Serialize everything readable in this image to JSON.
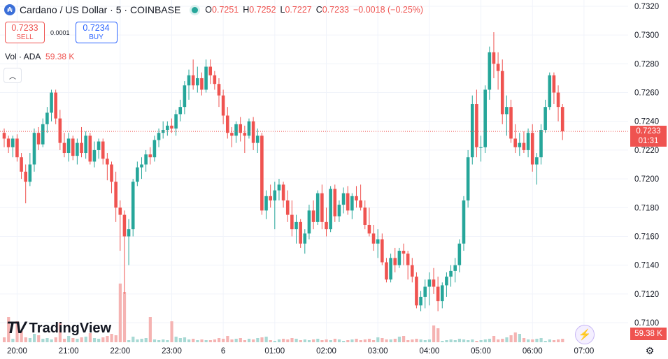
{
  "header": {
    "symbol_icon": "cardano-icon",
    "title": "Cardano / US Dollar · 5 · COINBASE",
    "ohlc": [
      {
        "k": "O",
        "v": "0.7251"
      },
      {
        "k": "H",
        "v": "0.7252"
      },
      {
        "k": "L",
        "v": "0.7227"
      },
      {
        "k": "C",
        "v": "0.7233"
      },
      {
        "k": "",
        "v": "−0.0018 (−0.25%)"
      }
    ]
  },
  "trade": {
    "sell_price": "0.7233",
    "sell_label": "SELL",
    "spread": "0.0001",
    "buy_price": "0.7234",
    "buy_label": "BUY"
  },
  "volume_legend": {
    "label": "Vol · ADA",
    "value": "59.38 K"
  },
  "branding": {
    "logo_text": "TradingView"
  },
  "last_price_tag": {
    "price": "0.7233",
    "countdown": "01:31"
  },
  "volume_tag": "59.38 K",
  "colors": {
    "up": "#26a69a",
    "down": "#ef5350",
    "up_vol": "#a8d9d4",
    "down_vol": "#f5b3b2"
  },
  "chart_data": {
    "type": "candlestick",
    "title": "Cardano / US Dollar · 5 · COINBASE",
    "ylim": [
      0.7094,
      0.7322
    ],
    "y_ticks": [
      "0.7320",
      "0.7300",
      "0.7280",
      "0.7260",
      "0.7240",
      "0.7220",
      "0.7200",
      "0.7180",
      "0.7160",
      "0.7140",
      "0.7120",
      "0.7100"
    ],
    "x_ticks": [
      {
        "label": "20:00",
        "index": 3
      },
      {
        "label": "21:00",
        "index": 15
      },
      {
        "label": "22:00",
        "index": 27
      },
      {
        "label": "23:00",
        "index": 39
      },
      {
        "label": "6",
        "index": 51
      },
      {
        "label": "01:00",
        "index": 63
      },
      {
        "label": "02:00",
        "index": 75
      },
      {
        "label": "03:00",
        "index": 87
      },
      {
        "label": "04:00",
        "index": 99
      },
      {
        "label": "05:00",
        "index": 111
      },
      {
        "label": "06:00",
        "index": 123
      },
      {
        "label": "07:00",
        "index": 135
      }
    ],
    "candles": [
      [
        0.7232,
        0.7235,
        0.7222,
        0.7228
      ],
      [
        0.7228,
        0.723,
        0.7218,
        0.7222
      ],
      [
        0.7222,
        0.723,
        0.7215,
        0.7228
      ],
      [
        0.7228,
        0.7231,
        0.7212,
        0.7215
      ],
      [
        0.7215,
        0.7218,
        0.72,
        0.7205
      ],
      [
        0.7205,
        0.721,
        0.7183,
        0.7198
      ],
      [
        0.7198,
        0.7218,
        0.7195,
        0.721
      ],
      [
        0.721,
        0.7235,
        0.7205,
        0.7232
      ],
      [
        0.7232,
        0.7236,
        0.722,
        0.7224
      ],
      [
        0.7224,
        0.7242,
        0.7222,
        0.7238
      ],
      [
        0.7238,
        0.725,
        0.7232,
        0.7246
      ],
      [
        0.7246,
        0.7262,
        0.724,
        0.726
      ],
      [
        0.726,
        0.7262,
        0.7238,
        0.7242
      ],
      [
        0.7242,
        0.7248,
        0.722,
        0.7225
      ],
      [
        0.7225,
        0.7232,
        0.7215,
        0.7218
      ],
      [
        0.7218,
        0.7232,
        0.7212,
        0.7228
      ],
      [
        0.7228,
        0.723,
        0.7213,
        0.7216
      ],
      [
        0.7216,
        0.7228,
        0.721,
        0.7225
      ],
      [
        0.7225,
        0.7236,
        0.7215,
        0.7218
      ],
      [
        0.7218,
        0.7233,
        0.7214,
        0.723
      ],
      [
        0.723,
        0.7232,
        0.721,
        0.7212
      ],
      [
        0.7212,
        0.7226,
        0.7208,
        0.722
      ],
      [
        0.722,
        0.7228,
        0.7214,
        0.7226
      ],
      [
        0.7226,
        0.7228,
        0.721,
        0.7214
      ],
      [
        0.7214,
        0.7218,
        0.7199,
        0.721
      ],
      [
        0.721,
        0.7212,
        0.719,
        0.7198
      ],
      [
        0.7198,
        0.7205,
        0.717,
        0.718
      ],
      [
        0.718,
        0.7185,
        0.715,
        0.7175
      ],
      [
        0.7175,
        0.7178,
        0.712,
        0.716
      ],
      [
        0.716,
        0.7172,
        0.714,
        0.7165
      ],
      [
        0.7165,
        0.72,
        0.716,
        0.7198
      ],
      [
        0.7198,
        0.7212,
        0.7195,
        0.7208
      ],
      [
        0.7208,
        0.7215,
        0.72,
        0.721
      ],
      [
        0.721,
        0.722,
        0.7205,
        0.7217
      ],
      [
        0.7217,
        0.7222,
        0.721,
        0.7215
      ],
      [
        0.7215,
        0.723,
        0.7212,
        0.7227
      ],
      [
        0.7227,
        0.7235,
        0.7222,
        0.7232
      ],
      [
        0.7232,
        0.724,
        0.7228,
        0.7234
      ],
      [
        0.7234,
        0.724,
        0.723,
        0.7237
      ],
      [
        0.7237,
        0.7242,
        0.7232,
        0.7235
      ],
      [
        0.7235,
        0.7248,
        0.723,
        0.7245
      ],
      [
        0.7245,
        0.7255,
        0.724,
        0.725
      ],
      [
        0.725,
        0.7268,
        0.7245,
        0.7265
      ],
      [
        0.7265,
        0.7276,
        0.7255,
        0.7272
      ],
      [
        0.7272,
        0.7283,
        0.7262,
        0.7265
      ],
      [
        0.7265,
        0.7278,
        0.726,
        0.727
      ],
      [
        0.727,
        0.7274,
        0.7258,
        0.7262
      ],
      [
        0.7262,
        0.7283,
        0.726,
        0.7278
      ],
      [
        0.7278,
        0.7283,
        0.7266,
        0.7272
      ],
      [
        0.7272,
        0.7275,
        0.7262,
        0.7266
      ],
      [
        0.7266,
        0.727,
        0.725,
        0.7258
      ],
      [
        0.7258,
        0.7262,
        0.7238,
        0.7244
      ],
      [
        0.7244,
        0.725,
        0.7228,
        0.7232
      ],
      [
        0.7232,
        0.7236,
        0.7222,
        0.723
      ],
      [
        0.723,
        0.724,
        0.7225,
        0.7238
      ],
      [
        0.7238,
        0.7243,
        0.7226,
        0.7232
      ],
      [
        0.7232,
        0.7237,
        0.7218,
        0.723
      ],
      [
        0.723,
        0.7242,
        0.7228,
        0.724
      ],
      [
        0.724,
        0.7243,
        0.722,
        0.7225
      ],
      [
        0.7225,
        0.7235,
        0.7218,
        0.723
      ],
      [
        0.723,
        0.7232,
        0.7175,
        0.7178
      ],
      [
        0.7178,
        0.7192,
        0.7172,
        0.7188
      ],
      [
        0.7188,
        0.7196,
        0.718,
        0.7185
      ],
      [
        0.7185,
        0.7198,
        0.7165,
        0.7192
      ],
      [
        0.7192,
        0.72,
        0.7185,
        0.7196
      ],
      [
        0.7196,
        0.7198,
        0.718,
        0.7185
      ],
      [
        0.7185,
        0.7192,
        0.717,
        0.7175
      ],
      [
        0.7175,
        0.7185,
        0.716,
        0.7165
      ],
      [
        0.7165,
        0.7175,
        0.7155,
        0.717
      ],
      [
        0.717,
        0.7172,
        0.7152,
        0.7155
      ],
      [
        0.7155,
        0.7165,
        0.7148,
        0.7162
      ],
      [
        0.7162,
        0.7182,
        0.7158,
        0.7178
      ],
      [
        0.7178,
        0.7185,
        0.7165,
        0.717
      ],
      [
        0.717,
        0.7192,
        0.7168,
        0.719
      ],
      [
        0.719,
        0.7196,
        0.7165,
        0.717
      ],
      [
        0.717,
        0.718,
        0.716,
        0.7165
      ],
      [
        0.7165,
        0.7195,
        0.7163,
        0.7193
      ],
      [
        0.7193,
        0.7196,
        0.717,
        0.7174
      ],
      [
        0.7174,
        0.7185,
        0.717,
        0.7182
      ],
      [
        0.7182,
        0.7194,
        0.7176,
        0.719
      ],
      [
        0.719,
        0.7195,
        0.7175,
        0.7178
      ],
      [
        0.7178,
        0.719,
        0.7172,
        0.7188
      ],
      [
        0.7188,
        0.7195,
        0.718,
        0.7185
      ],
      [
        0.7185,
        0.7196,
        0.7178,
        0.718
      ],
      [
        0.718,
        0.7185,
        0.7165,
        0.7168
      ],
      [
        0.7168,
        0.718,
        0.716,
        0.7162
      ],
      [
        0.7162,
        0.7168,
        0.715,
        0.7155
      ],
      [
        0.7155,
        0.7165,
        0.7145,
        0.7158
      ],
      [
        0.7158,
        0.7162,
        0.714,
        0.7142
      ],
      [
        0.7142,
        0.7145,
        0.7128,
        0.713
      ],
      [
        0.713,
        0.7148,
        0.7128,
        0.7145
      ],
      [
        0.7145,
        0.7152,
        0.7135,
        0.714
      ],
      [
        0.714,
        0.7152,
        0.7138,
        0.715
      ],
      [
        0.715,
        0.7155,
        0.714,
        0.7148
      ],
      [
        0.7148,
        0.715,
        0.713,
        0.714
      ],
      [
        0.714,
        0.7145,
        0.7128,
        0.7132
      ],
      [
        0.7132,
        0.7135,
        0.711,
        0.7112
      ],
      [
        0.7112,
        0.7122,
        0.7108,
        0.7118
      ],
      [
        0.7118,
        0.713,
        0.711,
        0.7125
      ],
      [
        0.7125,
        0.7135,
        0.7112,
        0.713
      ],
      [
        0.713,
        0.7138,
        0.712,
        0.7125
      ],
      [
        0.7125,
        0.7132,
        0.7108,
        0.7115
      ],
      [
        0.7115,
        0.7128,
        0.711,
        0.7126
      ],
      [
        0.7126,
        0.7135,
        0.7118,
        0.7132
      ],
      [
        0.7132,
        0.714,
        0.7125,
        0.7136
      ],
      [
        0.7136,
        0.7145,
        0.7128,
        0.714
      ],
      [
        0.714,
        0.7158,
        0.7135,
        0.7155
      ],
      [
        0.7155,
        0.7188,
        0.715,
        0.7185
      ],
      [
        0.7185,
        0.722,
        0.718,
        0.7215
      ],
      [
        0.7215,
        0.7258,
        0.721,
        0.7252
      ],
      [
        0.7252,
        0.7262,
        0.7215,
        0.7222
      ],
      [
        0.7222,
        0.723,
        0.7212,
        0.7222
      ],
      [
        0.7222,
        0.7265,
        0.7218,
        0.7262
      ],
      [
        0.7262,
        0.7292,
        0.7255,
        0.7288
      ],
      [
        0.7288,
        0.7302,
        0.727,
        0.728
      ],
      [
        0.728,
        0.7288,
        0.7262,
        0.7275
      ],
      [
        0.7275,
        0.7283,
        0.7238,
        0.7245
      ],
      [
        0.7245,
        0.7258,
        0.723,
        0.725
      ],
      [
        0.725,
        0.7255,
        0.7225,
        0.7228
      ],
      [
        0.7228,
        0.7238,
        0.7218,
        0.7222
      ],
      [
        0.7222,
        0.7232,
        0.7216,
        0.7225
      ],
      [
        0.7225,
        0.7233,
        0.7218,
        0.722
      ],
      [
        0.722,
        0.7235,
        0.7215,
        0.7232
      ],
      [
        0.7232,
        0.7238,
        0.7205,
        0.721
      ],
      [
        0.721,
        0.7218,
        0.7196,
        0.7215
      ],
      [
        0.7215,
        0.7238,
        0.721,
        0.7234
      ],
      [
        0.7234,
        0.7255,
        0.7232,
        0.725
      ],
      [
        0.725,
        0.7274,
        0.7248,
        0.7272
      ],
      [
        0.7272,
        0.7274,
        0.7252,
        0.726
      ],
      [
        0.726,
        0.7265,
        0.724,
        0.725
      ],
      [
        0.725,
        0.7252,
        0.7227,
        0.7233
      ]
    ],
    "volumes": [
      7,
      6,
      5,
      8,
      16,
      7,
      6,
      12,
      10,
      5,
      6,
      4,
      7,
      8,
      5,
      9,
      6,
      5,
      7,
      8,
      13,
      6,
      5,
      7,
      9,
      12,
      10,
      8,
      4,
      3,
      8,
      4,
      5,
      6,
      5,
      4,
      3,
      4,
      3,
      5,
      8,
      6,
      7,
      4,
      5,
      3,
      4,
      3,
      3,
      4,
      6,
      5,
      9,
      4,
      5,
      6,
      3,
      5,
      4,
      6,
      7,
      8,
      3,
      2,
      4,
      5,
      4,
      6,
      5,
      3,
      4,
      3,
      4,
      5,
      3,
      4,
      3,
      5,
      4,
      2,
      3,
      4,
      5,
      3,
      4,
      5,
      3,
      7,
      6,
      4,
      4,
      5,
      8,
      9,
      3,
      4,
      5,
      4,
      3,
      4,
      5,
      3,
      2,
      3,
      4,
      3,
      5,
      4,
      3,
      4,
      2,
      3,
      4,
      5,
      9,
      4,
      5,
      7,
      10,
      14,
      12,
      6,
      4,
      4,
      5,
      6,
      2,
      4,
      3,
      4,
      5,
      3,
      4,
      3,
      2,
      4,
      5
    ],
    "volume_tall_bars": {
      "27": 42,
      "28": 36,
      "1": 18,
      "3": 15,
      "13": 14,
      "34": 18,
      "39": 15,
      "100": 12,
      "101": 10
    }
  }
}
